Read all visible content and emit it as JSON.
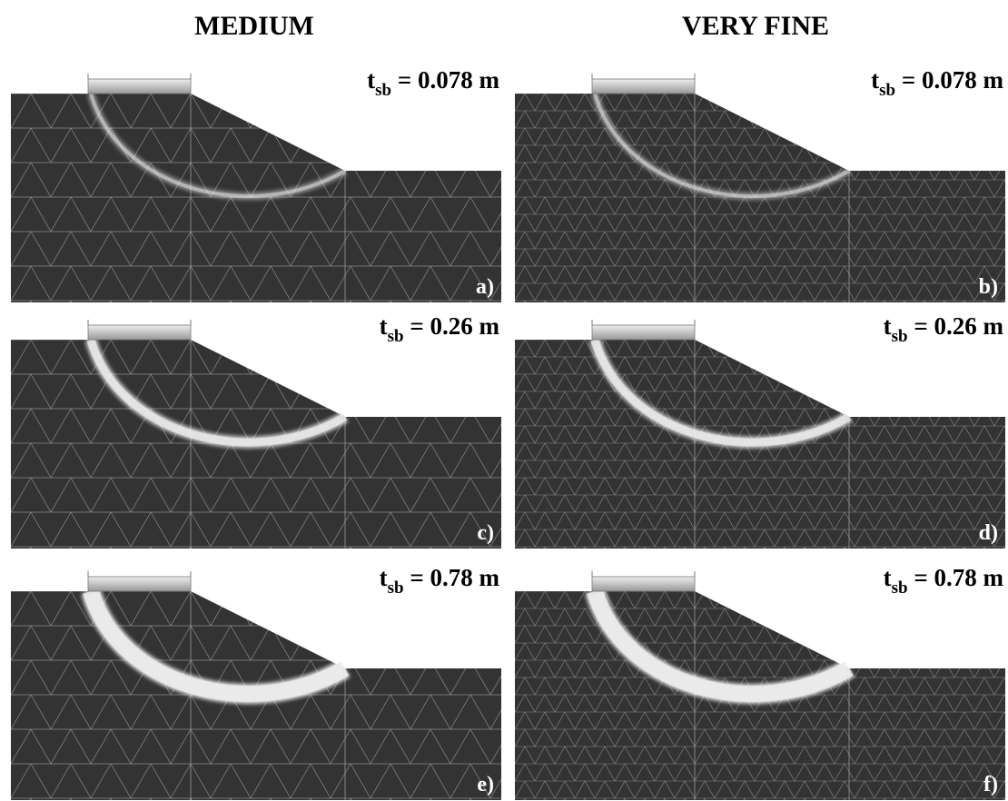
{
  "columns": [
    "MEDIUM",
    "VERY FINE"
  ],
  "panels": [
    {
      "symbol": "t",
      "subscript": "sb",
      "text": " = 0.078 m",
      "label": "a)"
    },
    {
      "symbol": "t",
      "subscript": "sb",
      "text": " = 0.078 m",
      "label": "b)"
    },
    {
      "symbol": "t",
      "subscript": "sb",
      "text": " = 0.26 m",
      "label": "c)"
    },
    {
      "symbol": "t",
      "subscript": "sb",
      "text": " = 0.26 m",
      "label": "d)"
    },
    {
      "symbol": "t",
      "subscript": "sb",
      "text": " = 0.78 m",
      "label": "e)"
    },
    {
      "symbol": "t",
      "subscript": "sb",
      "text": " = 0.78 m",
      "label": "f)"
    }
  ]
}
